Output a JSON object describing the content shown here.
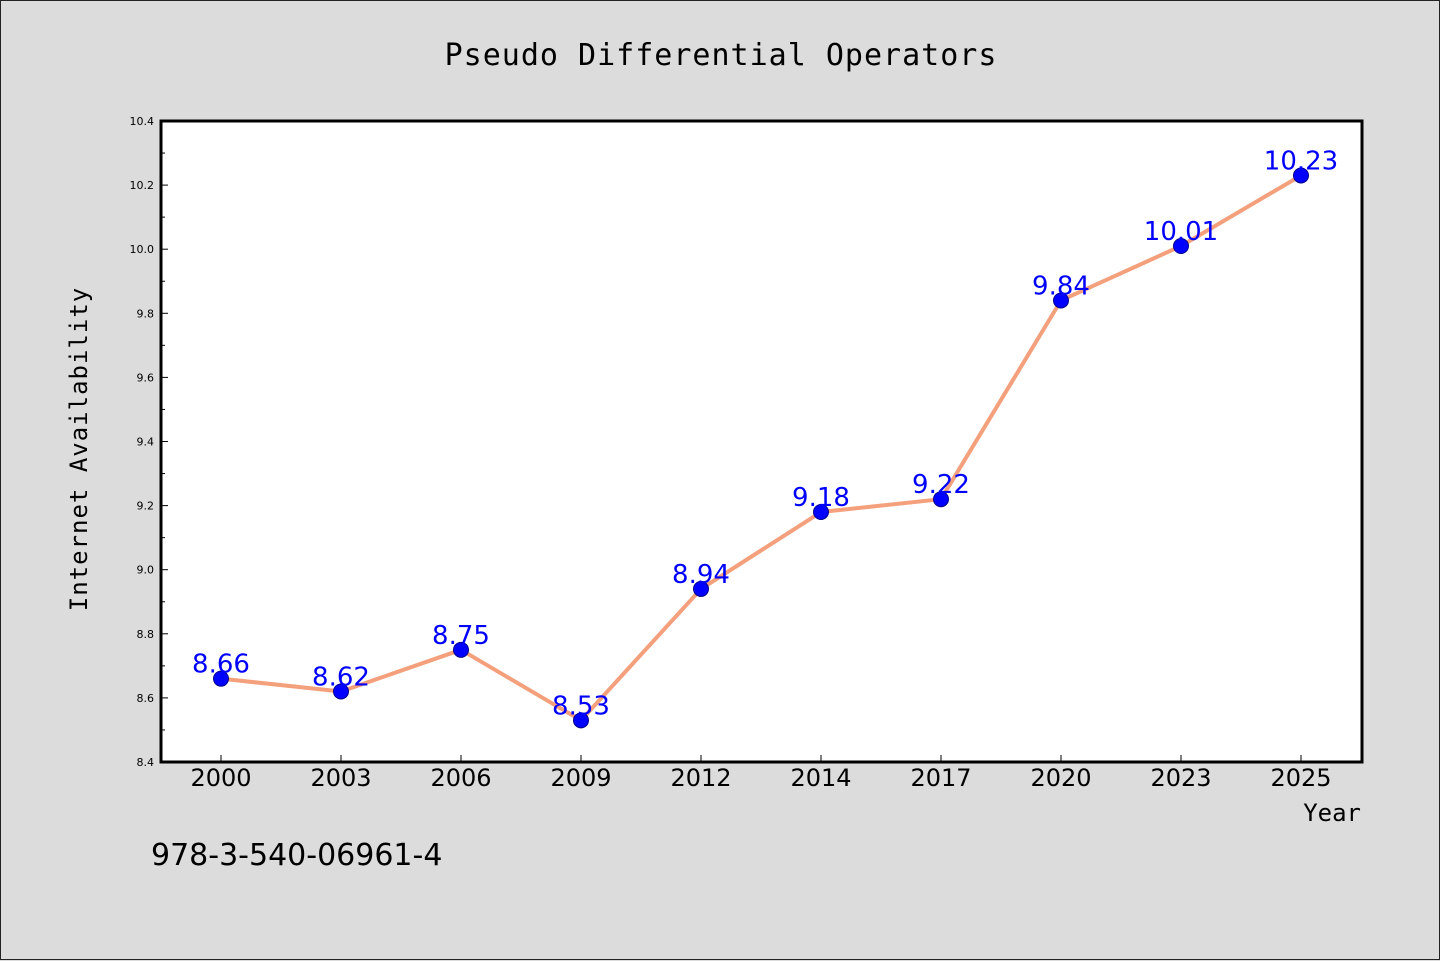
{
  "footer_text": "978-3-540-06961-4",
  "colors": {
    "background": "#dcdcdc",
    "plot_background": "#ffffff",
    "line": "#f4a07c",
    "marker": "#0000ff",
    "data_label": "#0000ff"
  },
  "chart_data": {
    "type": "line",
    "title": "Pseudo Differential Operators",
    "xlabel": "Year",
    "ylabel": "Internet Availability",
    "categories": [
      "2000",
      "2003",
      "2006",
      "2009",
      "2012",
      "2014",
      "2017",
      "2020",
      "2023",
      "2025"
    ],
    "series": [
      {
        "values": [
          8.66,
          8.62,
          8.75,
          8.53,
          8.94,
          9.18,
          9.22,
          9.84,
          10.01,
          10.23
        ]
      }
    ],
    "data_labels": [
      "8.66",
      "8.62",
      "8.75",
      "8.53",
      "8.94",
      "9.18",
      "9.22",
      "9.84",
      "10.01",
      "10.23"
    ],
    "yticks": [
      "8.4",
      "8.6",
      "8.8",
      "9.0",
      "9.2",
      "9.4",
      "9.6",
      "9.8",
      "10.0",
      "10.2",
      "10.4"
    ],
    "ylim": [
      8.4,
      10.4
    ],
    "grid": false,
    "legend": "none"
  }
}
